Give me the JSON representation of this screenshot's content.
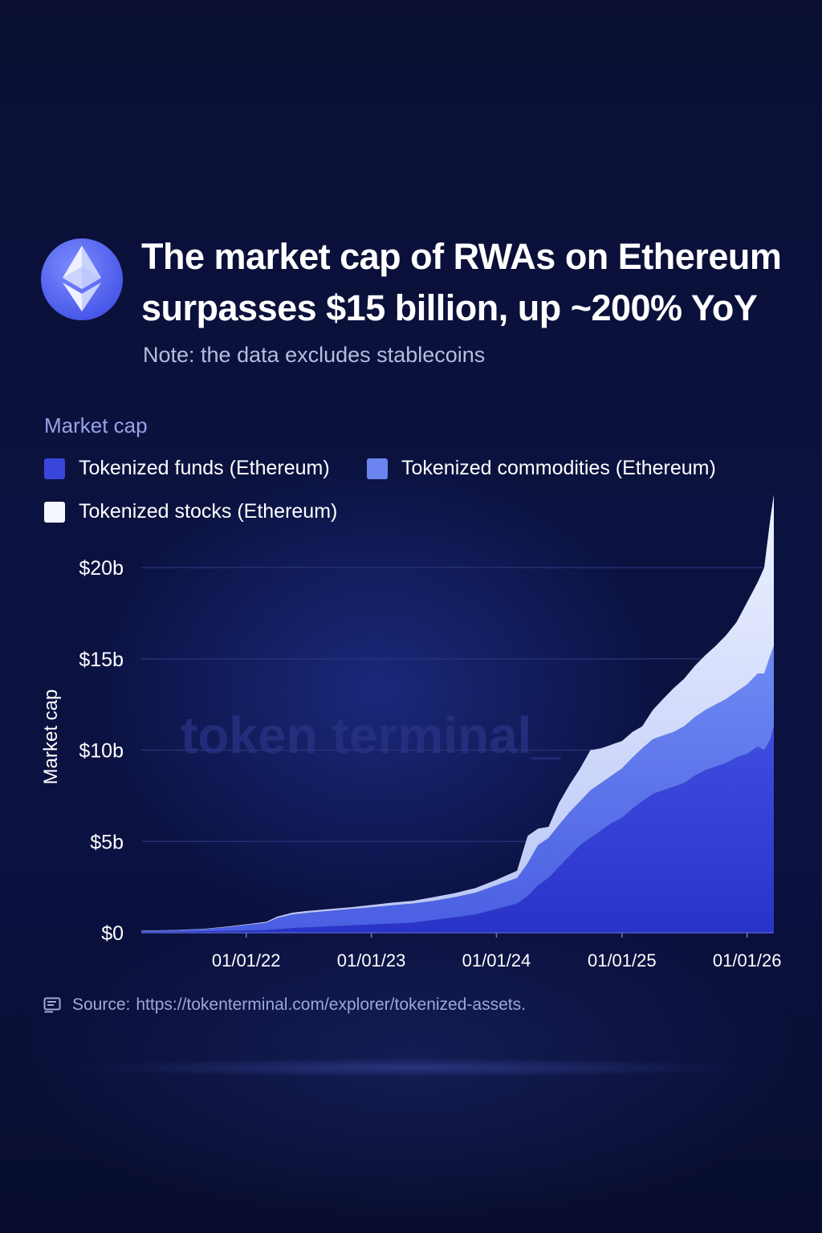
{
  "header": {
    "title": "The market cap of RWAs on Ethereum surpasses $15 billion, up ~200% YoY",
    "note": "Note: the data excludes stablecoins",
    "logo_icon": "ethereum-icon"
  },
  "watermark": "token terminal_",
  "source": {
    "label": "Source:",
    "url": "https://tokenterminal.com/explorer/tokenized-assets.",
    "icon": "document-icon"
  },
  "colors": {
    "funds": "#3a45d9",
    "commodities": "#6b84f0",
    "stocks": "#dfe6ff",
    "background": "#0a0f35"
  },
  "chart_data": {
    "type": "area",
    "stacked": true,
    "legend_title": "Market cap",
    "ylabel": "Market cap",
    "ylim": [
      0,
      24
    ],
    "y_unit": "billion USD",
    "y_ticks": [
      0,
      5,
      10,
      15,
      20
    ],
    "y_tick_labels": [
      "$0",
      "$5b",
      "$10b",
      "$15b",
      "$20b"
    ],
    "x_ticks": [
      "2022-01-01",
      "2023-01-01",
      "2024-01-01",
      "2025-01-01",
      "2026-01-01"
    ],
    "x_tick_labels": [
      "01/01/22",
      "01/01/23",
      "01/01/24",
      "01/01/25",
      "01/01/26"
    ],
    "x_range": [
      "2021-03-01",
      "2026-03-20"
    ],
    "grid": true,
    "legend_position": "top-left",
    "x": [
      "2021-03-01",
      "2021-06-01",
      "2021-09-01",
      "2021-11-01",
      "2022-01-01",
      "2022-03-01",
      "2022-04-01",
      "2022-05-15",
      "2022-07-01",
      "2022-09-01",
      "2022-11-01",
      "2023-01-01",
      "2023-03-01",
      "2023-05-01",
      "2023-07-01",
      "2023-09-01",
      "2023-11-01",
      "2024-01-01",
      "2024-03-01",
      "2024-04-01",
      "2024-05-01",
      "2024-06-01",
      "2024-07-01",
      "2024-08-01",
      "2024-09-01",
      "2024-10-01",
      "2024-11-01",
      "2024-12-01",
      "2025-01-01",
      "2025-02-01",
      "2025-03-01",
      "2025-04-01",
      "2025-05-01",
      "2025-06-01",
      "2025-07-01",
      "2025-08-01",
      "2025-09-01",
      "2025-10-01",
      "2025-11-01",
      "2025-12-01",
      "2026-01-01",
      "2026-02-01",
      "2026-02-20",
      "2026-03-10",
      "2026-03-20"
    ],
    "series": [
      {
        "name": "Tokenized funds (Ethereum)",
        "values": [
          0.05,
          0.05,
          0.08,
          0.1,
          0.12,
          0.15,
          0.2,
          0.25,
          0.3,
          0.35,
          0.4,
          0.45,
          0.5,
          0.55,
          0.7,
          0.85,
          1.0,
          1.3,
          1.6,
          2.0,
          2.6,
          3.0,
          3.6,
          4.2,
          4.8,
          5.2,
          5.6,
          6.0,
          6.3,
          6.8,
          7.2,
          7.6,
          7.8,
          8.0,
          8.2,
          8.6,
          8.9,
          9.1,
          9.3,
          9.6,
          9.8,
          10.2,
          10.0,
          10.6,
          11.3
        ]
      },
      {
        "name": "Tokenized commodities (Ethereum)",
        "values": [
          0.05,
          0.08,
          0.12,
          0.2,
          0.3,
          0.4,
          0.6,
          0.75,
          0.8,
          0.85,
          0.9,
          0.95,
          1.0,
          1.05,
          1.05,
          1.1,
          1.2,
          1.3,
          1.4,
          1.8,
          2.2,
          2.2,
          2.3,
          2.4,
          2.4,
          2.6,
          2.6,
          2.6,
          2.7,
          2.8,
          2.9,
          3.0,
          3.0,
          3.0,
          3.1,
          3.2,
          3.3,
          3.4,
          3.5,
          3.6,
          3.8,
          4.0,
          4.2,
          4.6,
          4.4
        ]
      },
      {
        "name": "Tokenized stocks (Ethereum)",
        "values": [
          0.02,
          0.02,
          0.02,
          0.03,
          0.04,
          0.05,
          0.08,
          0.1,
          0.1,
          0.1,
          0.1,
          0.12,
          0.15,
          0.15,
          0.2,
          0.22,
          0.25,
          0.3,
          0.4,
          1.5,
          0.9,
          0.6,
          1.2,
          1.5,
          1.8,
          2.2,
          1.9,
          1.7,
          1.5,
          1.4,
          1.2,
          1.6,
          2.0,
          2.4,
          2.6,
          2.8,
          3.0,
          3.2,
          3.5,
          3.8,
          4.5,
          5.0,
          5.8,
          7.5,
          8.3
        ]
      }
    ]
  }
}
